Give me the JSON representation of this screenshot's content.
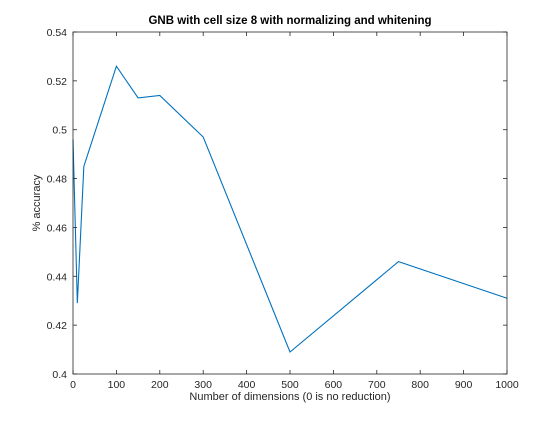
{
  "chart_data": {
    "type": "line",
    "title": "GNB with cell size 8 with normalizing and whitening",
    "xlabel": "Number of dimensions (0 is no reduction)",
    "ylabel": "% accuracy",
    "xlim": [
      0,
      1000
    ],
    "ylim": [
      0.4,
      0.54
    ],
    "grid": false,
    "x_ticks": [
      0,
      100,
      200,
      300,
      400,
      500,
      600,
      700,
      800,
      900,
      1000
    ],
    "y_ticks": [
      0.4,
      0.42,
      0.44,
      0.46,
      0.48,
      0.5,
      0.52,
      0.54
    ],
    "x_tick_labels": [
      "0",
      "100",
      "200",
      "300",
      "400",
      "500",
      "600",
      "700",
      "800",
      "900",
      "1000"
    ],
    "y_tick_labels": [
      "0.4",
      "0.42",
      "0.44",
      "0.46",
      "0.48",
      "0.5",
      "0.52",
      "0.54"
    ],
    "series": [
      {
        "color": "#0072bd",
        "x": [
          0,
          10,
          25,
          100,
          150,
          200,
          300,
          500,
          750,
          1000
        ],
        "y": [
          0.496,
          0.429,
          0.485,
          0.526,
          0.513,
          0.514,
          0.497,
          0.409,
          0.446,
          0.431
        ]
      }
    ]
  }
}
